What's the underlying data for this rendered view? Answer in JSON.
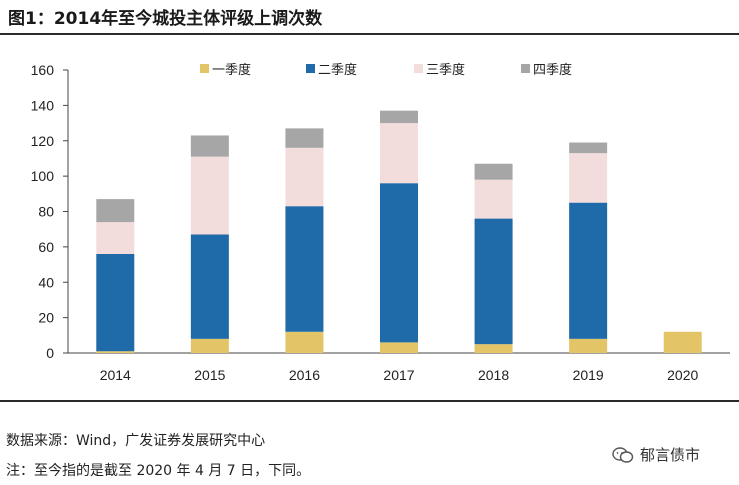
{
  "header": {
    "title": "图1：2014年至今城投主体评级上调次数"
  },
  "footer": {
    "source": "数据来源：Wind，广发证券发展研究中心",
    "note": "注：至今指的是截至 2020 年 4 月 7 日，下同。",
    "brand": "郁言债市"
  },
  "chart_data": {
    "type": "bar",
    "stacked": true,
    "categories": [
      "2014",
      "2015",
      "2016",
      "2017",
      "2018",
      "2019",
      "2020"
    ],
    "series": [
      {
        "name": "一季度",
        "color": "#E3C466",
        "values": [
          1,
          8,
          12,
          6,
          5,
          8,
          12
        ]
      },
      {
        "name": "二季度",
        "color": "#1F6AA9",
        "values": [
          55,
          59,
          71,
          90,
          71,
          77,
          0
        ]
      },
      {
        "name": "三季度",
        "color": "#F2DCDC",
        "values": [
          18,
          44,
          33,
          34,
          22,
          28,
          0
        ]
      },
      {
        "name": "四季度",
        "color": "#A6A6A6",
        "values": [
          13,
          12,
          11,
          7,
          9,
          6,
          0
        ]
      }
    ],
    "ylim": [
      0,
      160
    ],
    "yticks": [
      "0",
      "20",
      "40",
      "60",
      "80",
      "100",
      "120",
      "140",
      "160"
    ],
    "legend_position": "top",
    "grid": false
  }
}
